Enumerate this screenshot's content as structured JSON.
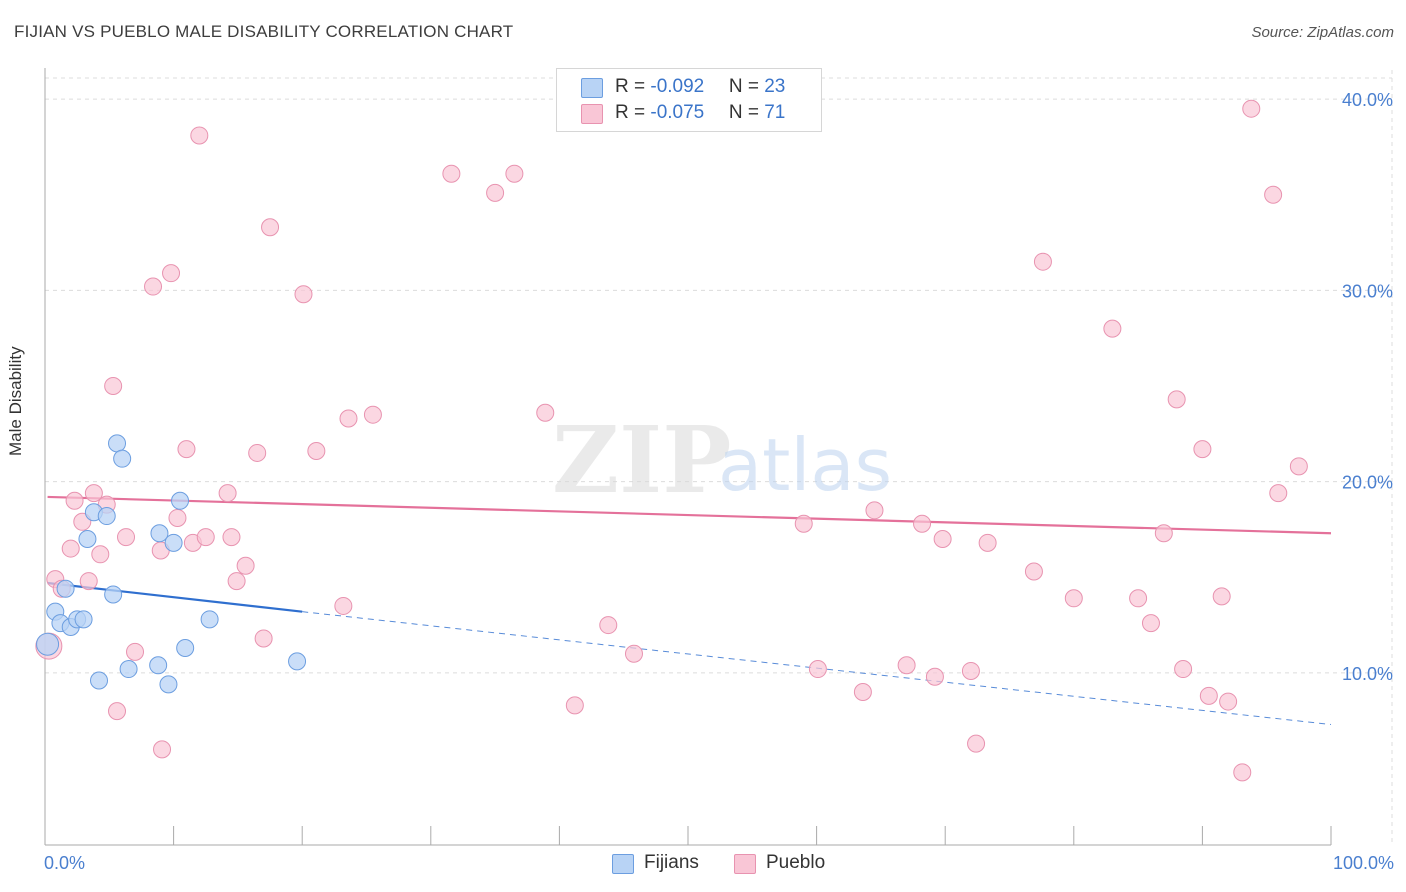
{
  "title": "FIJIAN VS PUEBLO MALE DISABILITY CORRELATION CHART",
  "source": "Source: ZipAtlas.com",
  "legend": {
    "rows": [
      {
        "r_label": "R = ",
        "r_value": "-0.092",
        "n_label": "N = ",
        "n_value": "23"
      },
      {
        "r_label": "R = ",
        "r_value": "-0.075",
        "n_label": "N = ",
        "n_value": "71"
      }
    ]
  },
  "colors": {
    "fijians_fill": "#b8d3f5",
    "fijians_stroke": "#6c9ee0",
    "fijians_line": "#2f6fcf",
    "pueblo_fill": "#f9c6d6",
    "pueblo_stroke": "#e893b0",
    "pueblo_line": "#e4719a",
    "tick_label": "#4a7fcf",
    "grid": "#dcdcdc"
  },
  "chart_data": {
    "type": "scatter",
    "title": "FIJIAN VS PUEBLO MALE DISABILITY CORRELATION CHART",
    "xlabel": "",
    "ylabel": "Male Disability",
    "xlim": [
      0,
      100
    ],
    "ylim": [
      1,
      41
    ],
    "x_tick_labels": [
      "0.0%",
      "100.0%"
    ],
    "y_ticks": [
      10,
      20,
      30,
      40
    ],
    "y_tick_labels": [
      "10.0%",
      "20.0%",
      "30.0%",
      "40.0%"
    ],
    "grid": true,
    "legend_position": "bottom",
    "watermark": "ZIPatlas",
    "series": [
      {
        "name": "Fijians",
        "r": -0.092,
        "n": 23,
        "trend_solid": [
          [
            0.2,
            14.7
          ],
          [
            20,
            13.2
          ]
        ],
        "trend_dashed": [
          [
            20,
            13.2
          ],
          [
            100,
            7.3
          ]
        ],
        "points": [
          [
            0.2,
            11.5
          ],
          [
            0.8,
            13.2
          ],
          [
            1.2,
            12.6
          ],
          [
            1.6,
            14.4
          ],
          [
            2.0,
            12.4
          ],
          [
            2.5,
            12.8
          ],
          [
            3.0,
            12.8
          ],
          [
            3.3,
            17.0
          ],
          [
            3.8,
            18.4
          ],
          [
            4.2,
            9.6
          ],
          [
            4.8,
            18.2
          ],
          [
            5.3,
            14.1
          ],
          [
            5.6,
            22.0
          ],
          [
            6.0,
            21.2
          ],
          [
            6.5,
            10.2
          ],
          [
            8.8,
            10.4
          ],
          [
            8.9,
            17.3
          ],
          [
            9.6,
            9.4
          ],
          [
            10.0,
            16.8
          ],
          [
            10.5,
            19.0
          ],
          [
            10.9,
            11.3
          ],
          [
            12.8,
            12.8
          ],
          [
            19.6,
            10.6
          ]
        ]
      },
      {
        "name": "Pueblo",
        "r": -0.075,
        "n": 71,
        "trend_solid": [
          [
            0.2,
            19.2
          ],
          [
            100,
            17.3
          ]
        ],
        "points": [
          [
            0.3,
            11.4
          ],
          [
            0.8,
            14.9
          ],
          [
            1.3,
            14.4
          ],
          [
            2.0,
            16.5
          ],
          [
            2.3,
            19.0
          ],
          [
            2.9,
            17.9
          ],
          [
            3.4,
            14.8
          ],
          [
            3.8,
            19.4
          ],
          [
            4.3,
            16.2
          ],
          [
            4.8,
            18.8
          ],
          [
            5.3,
            25.0
          ],
          [
            5.6,
            8.0
          ],
          [
            6.3,
            17.1
          ],
          [
            7.0,
            11.1
          ],
          [
            8.4,
            30.2
          ],
          [
            9.0,
            16.4
          ],
          [
            9.1,
            6.0
          ],
          [
            9.8,
            30.9
          ],
          [
            10.3,
            18.1
          ],
          [
            11.0,
            21.7
          ],
          [
            11.5,
            16.8
          ],
          [
            12.0,
            38.1
          ],
          [
            12.5,
            17.1
          ],
          [
            14.2,
            19.4
          ],
          [
            14.5,
            17.1
          ],
          [
            14.9,
            14.8
          ],
          [
            15.6,
            15.6
          ],
          [
            16.5,
            21.5
          ],
          [
            17.0,
            11.8
          ],
          [
            17.5,
            33.3
          ],
          [
            20.1,
            29.8
          ],
          [
            21.1,
            21.6
          ],
          [
            23.2,
            13.5
          ],
          [
            23.6,
            23.3
          ],
          [
            25.5,
            23.5
          ],
          [
            31.6,
            36.1
          ],
          [
            35.0,
            35.1
          ],
          [
            36.5,
            36.1
          ],
          [
            38.9,
            23.6
          ],
          [
            41.2,
            8.3
          ],
          [
            43.8,
            12.5
          ],
          [
            45.8,
            11.0
          ],
          [
            59.0,
            17.8
          ],
          [
            60.1,
            10.2
          ],
          [
            63.6,
            9.0
          ],
          [
            64.5,
            18.5
          ],
          [
            67.0,
            10.4
          ],
          [
            68.2,
            17.8
          ],
          [
            69.2,
            9.8
          ],
          [
            69.8,
            17.0
          ],
          [
            72.0,
            10.1
          ],
          [
            72.4,
            6.3
          ],
          [
            73.3,
            16.8
          ],
          [
            76.9,
            15.3
          ],
          [
            77.6,
            31.5
          ],
          [
            80.0,
            13.9
          ],
          [
            83.0,
            28.0
          ],
          [
            85.0,
            13.9
          ],
          [
            86.0,
            12.6
          ],
          [
            87.0,
            17.3
          ],
          [
            88.0,
            24.3
          ],
          [
            88.5,
            10.2
          ],
          [
            90.0,
            21.7
          ],
          [
            90.5,
            8.8
          ],
          [
            91.5,
            14.0
          ],
          [
            92.0,
            8.5
          ],
          [
            93.1,
            4.8
          ],
          [
            93.8,
            39.5
          ],
          [
            95.5,
            35.0
          ],
          [
            95.9,
            19.4
          ],
          [
            97.5,
            20.8
          ]
        ]
      }
    ]
  },
  "bottom_legend": [
    "Fijians",
    "Pueblo"
  ]
}
